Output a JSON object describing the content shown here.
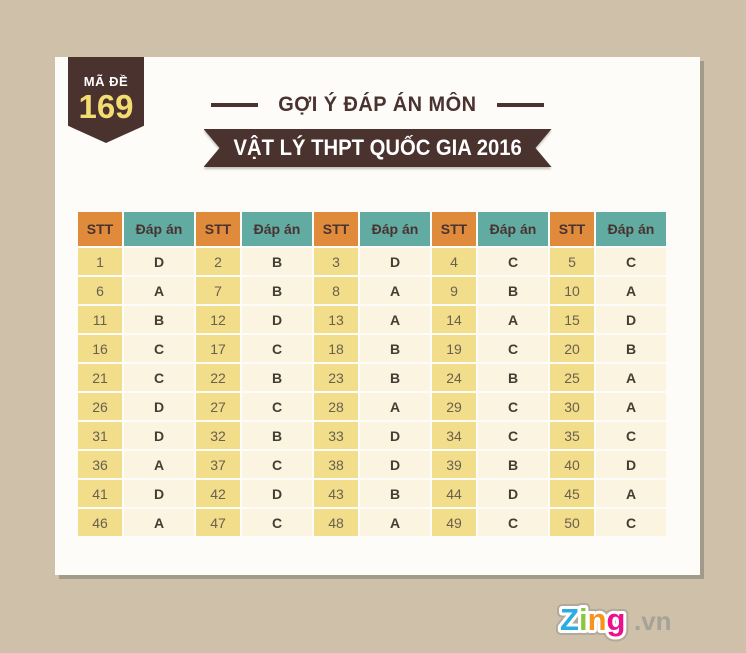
{
  "colors": {
    "page_bg": "#cec0a9",
    "card_bg": "#fdfcf8",
    "dark_brown": "#4a332f",
    "badge_code": "#f3dc72",
    "header_orange": "#e08a3c",
    "header_teal": "#61aba3",
    "stt_cell": "#f1dd8a",
    "answer_cell": "#faf4e0",
    "number_text": "#6a604f",
    "answer_text": "#443d33",
    "shadow": "#a39b8a",
    "wm_outline": "#b2a999",
    "wm_suffix": "#a5a298"
  },
  "badge": {
    "label": "MÃ ĐỀ",
    "code": "169"
  },
  "title": {
    "text": "GỢI Ý ĐÁP ÁN MÔN"
  },
  "ribbon": {
    "text": "VẬT LÝ THPT QUỐC GIA 2016"
  },
  "table": {
    "headers": {
      "stt": "STT",
      "answer": "Đáp án"
    },
    "rows": [
      [
        {
          "n": "1",
          "a": "D"
        },
        {
          "n": "2",
          "a": "B"
        },
        {
          "n": "3",
          "a": "D"
        },
        {
          "n": "4",
          "a": "C"
        },
        {
          "n": "5",
          "a": "C"
        }
      ],
      [
        {
          "n": "6",
          "a": "A"
        },
        {
          "n": "7",
          "a": "B"
        },
        {
          "n": "8",
          "a": "A"
        },
        {
          "n": "9",
          "a": "B"
        },
        {
          "n": "10",
          "a": "A"
        }
      ],
      [
        {
          "n": "11",
          "a": "B"
        },
        {
          "n": "12",
          "a": "D"
        },
        {
          "n": "13",
          "a": "A"
        },
        {
          "n": "14",
          "a": "A"
        },
        {
          "n": "15",
          "a": "D"
        }
      ],
      [
        {
          "n": "16",
          "a": "C"
        },
        {
          "n": "17",
          "a": "C"
        },
        {
          "n": "18",
          "a": "B"
        },
        {
          "n": "19",
          "a": "C"
        },
        {
          "n": "20",
          "a": "B"
        }
      ],
      [
        {
          "n": "21",
          "a": "C"
        },
        {
          "n": "22",
          "a": "B"
        },
        {
          "n": "23",
          "a": "B"
        },
        {
          "n": "24",
          "a": "B"
        },
        {
          "n": "25",
          "a": "A"
        }
      ],
      [
        {
          "n": "26",
          "a": "D"
        },
        {
          "n": "27",
          "a": "C"
        },
        {
          "n": "28",
          "a": "A"
        },
        {
          "n": "29",
          "a": "C"
        },
        {
          "n": "30",
          "a": "A"
        }
      ],
      [
        {
          "n": "31",
          "a": "D"
        },
        {
          "n": "32",
          "a": "B"
        },
        {
          "n": "33",
          "a": "D"
        },
        {
          "n": "34",
          "a": "C"
        },
        {
          "n": "35",
          "a": "C"
        }
      ],
      [
        {
          "n": "36",
          "a": "A"
        },
        {
          "n": "37",
          "a": "C"
        },
        {
          "n": "38",
          "a": "D"
        },
        {
          "n": "39",
          "a": "B"
        },
        {
          "n": "40",
          "a": "D"
        }
      ],
      [
        {
          "n": "41",
          "a": "D"
        },
        {
          "n": "42",
          "a": "D"
        },
        {
          "n": "43",
          "a": "B"
        },
        {
          "n": "44",
          "a": "D"
        },
        {
          "n": "45",
          "a": "A"
        }
      ],
      [
        {
          "n": "46",
          "a": "A"
        },
        {
          "n": "47",
          "a": "C"
        },
        {
          "n": "48",
          "a": "A"
        },
        {
          "n": "49",
          "a": "C"
        },
        {
          "n": "50",
          "a": "C"
        }
      ]
    ]
  },
  "watermark": {
    "letters": [
      {
        "ch": "Z",
        "color": "#2bace2"
      },
      {
        "ch": "i",
        "color": "#8cc63e"
      },
      {
        "ch": "n",
        "color": "#f7941e"
      },
      {
        "ch": "g",
        "color": "#ed0f8c"
      }
    ],
    "suffix": ".vn"
  }
}
